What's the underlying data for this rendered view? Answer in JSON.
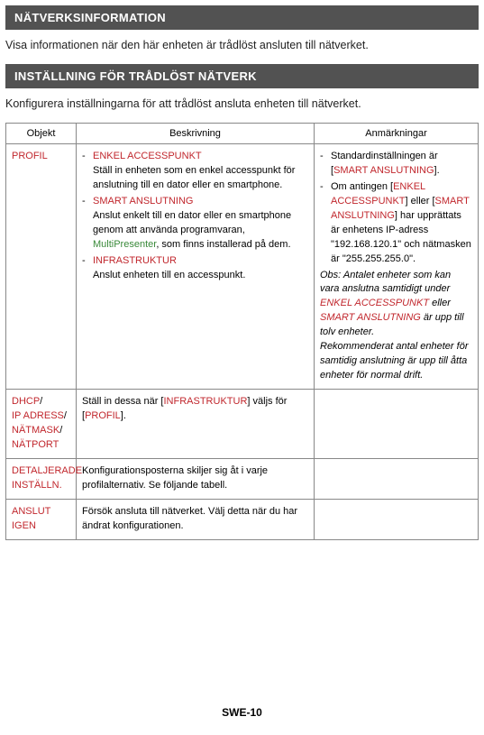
{
  "sections": {
    "network_info": {
      "title": "NÄTVERKSINFORMATION",
      "intro": "Visa informationen när den här enheten är trådlöst ansluten till nätverket."
    },
    "wireless_settings": {
      "title": "INSTÄLLNING FÖR TRÅDLÖST NÄTVERK",
      "intro": "Konfigurera inställningarna för att trådlöst ansluta enheten till nätverket."
    }
  },
  "table": {
    "headers": {
      "object": "Objekt",
      "description": "Beskrivning",
      "notes": "Anmärkningar"
    },
    "rows": {
      "profil": {
        "object": "PROFIL",
        "desc": {
          "items": [
            {
              "title": "ENKEL ACCESSPUNKT",
              "text": "Ställ in enheten som en enkel accesspunkt för anslutning till en dator eller en smartphone."
            },
            {
              "title": "SMART ANSLUTNING",
              "text_pre": "Anslut enkelt till en dator eller en smartphone genom att använda programvaran, ",
              "green": "MultiPresenter",
              "text_post": ", som finns installerad på dem."
            },
            {
              "title": "INFRASTRUKTUR",
              "text": "Anslut enheten till en accesspunkt."
            }
          ]
        },
        "notes": {
          "item1_pre": "Standardinställningen är [",
          "item1_red": "SMART ANSLUTNING",
          "item1_post": "].",
          "item2_pre": "Om antingen [",
          "item2_red1": "ENKEL ACCESSPUNKT",
          "item2_mid1": "] eller [",
          "item2_red2": "SMART ANSLUTNING",
          "item2_post": "] har upprättats är enhetens IP-adress \"192.168.120.1\" och nätmasken är \"255.255.255.0\".",
          "obs_pre": "Obs: Antalet enheter som kan vara anslutna samtidigt under ",
          "obs_red1": "ENKEL ACCESSPUNKT",
          "obs_mid": " eller ",
          "obs_red2": "SMART ANSLUTNING",
          "obs_post": " är upp till tolv enheter.",
          "rec": "Rekommenderat antal enheter för samtidig anslutning är upp till åtta enheter för normal drift."
        }
      },
      "dhcp": {
        "object_l1": "DHCP",
        "object_l2": "IP ADRESS",
        "object_l3": "NÄTMASK",
        "object_l4": "NÄTPORT",
        "desc_pre": "Ställ in dessa när [",
        "desc_red1": "INFRASTRUKTUR",
        "desc_mid": "] väljs för [",
        "desc_red2": "PROFIL",
        "desc_post": "]."
      },
      "detail": {
        "object": "DETALJERADE INSTÄLLN.",
        "desc": "Konfigurationsposterna skiljer sig åt i varje profilalternativ. Se följande tabell."
      },
      "reconnect": {
        "object": "ANSLUT IGEN",
        "desc": "Försök ansluta till nätverket. Välj detta när du har ändrat konfigurationen."
      }
    }
  },
  "footer": "SWE-10",
  "colors": {
    "header_bg": "#525252",
    "red": "#c1272d",
    "green": "#3a8a3a",
    "border": "#888888"
  }
}
